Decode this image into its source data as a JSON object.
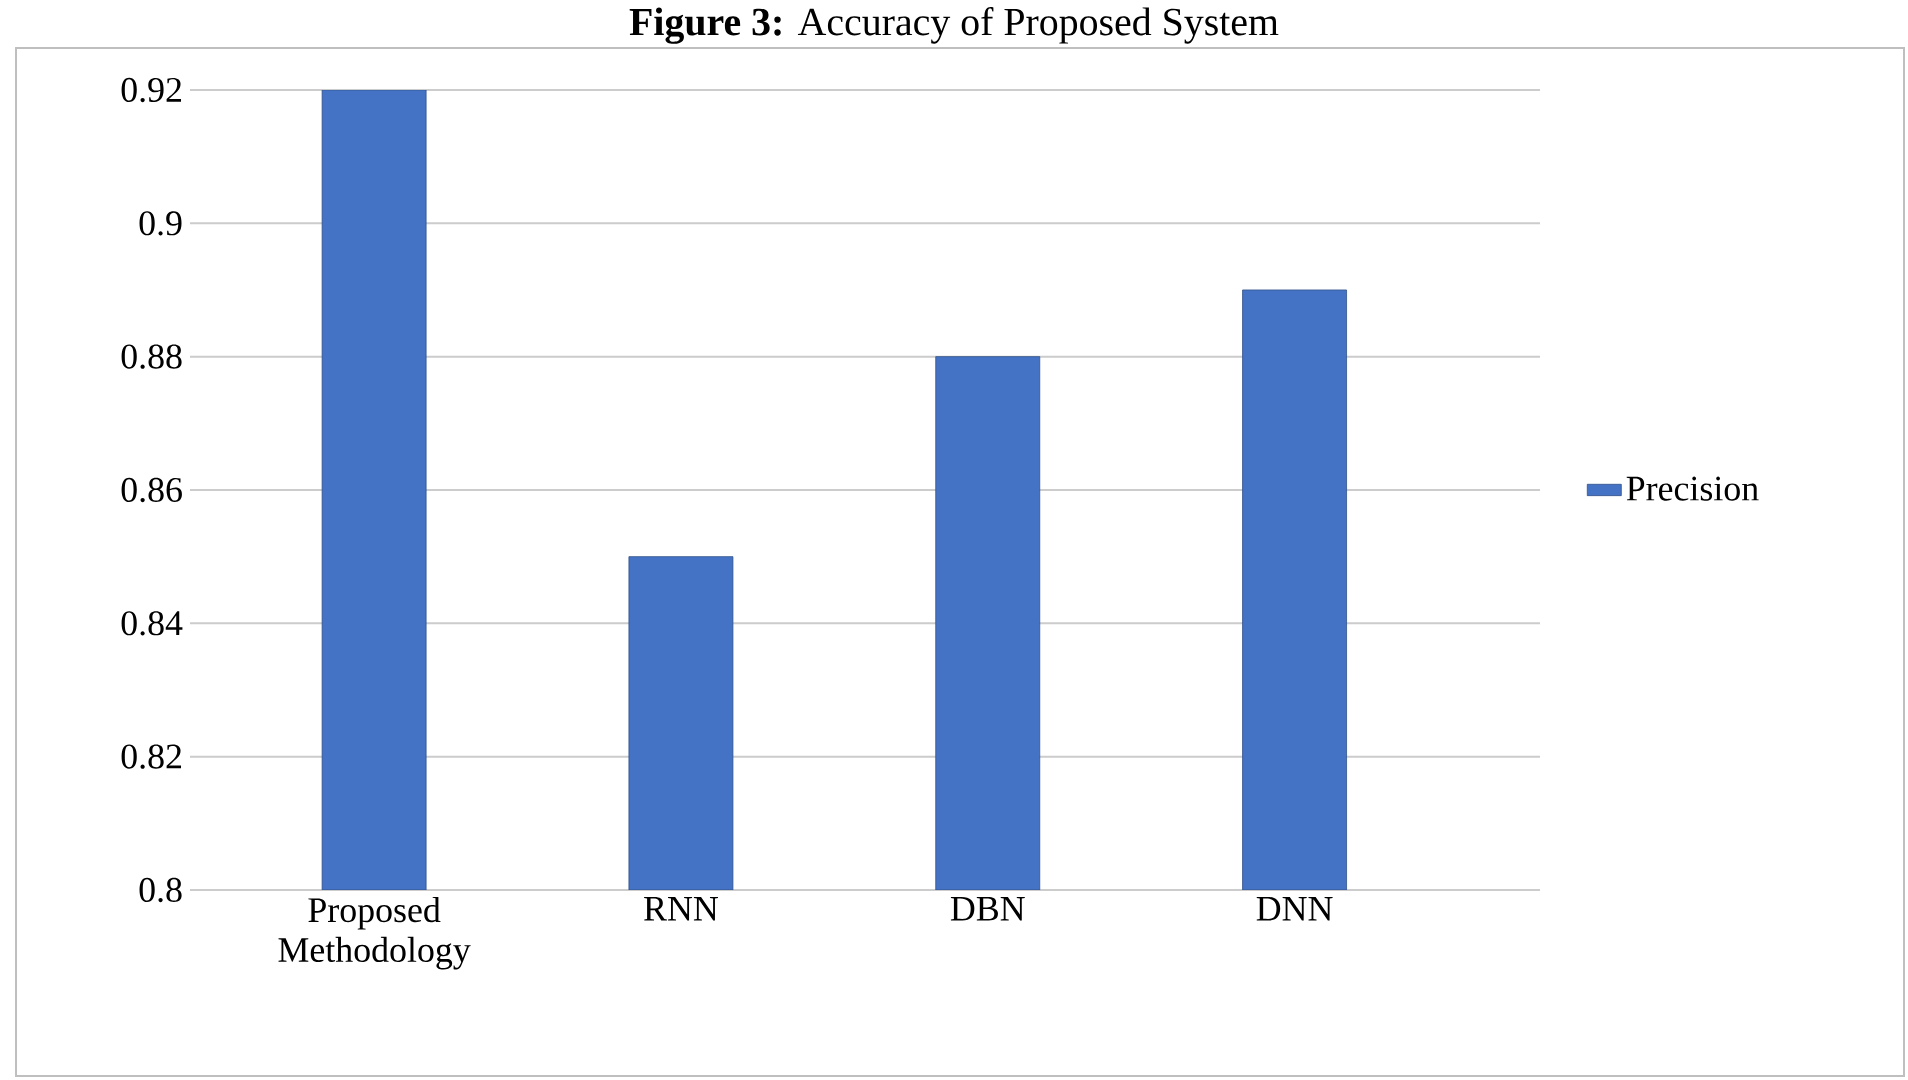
{
  "chart_data": {
    "type": "bar",
    "title": "**Figure 3:** Accuracy of Proposed System",
    "categories": [
      "Proposed Methodology",
      "RNN",
      "DBN",
      "DNN"
    ],
    "series": [
      {
        "name": "Precision",
        "color": "#4472c4",
        "values": [
          0.92,
          0.85,
          0.88,
          0.89
        ]
      }
    ],
    "ylim": [
      0.8,
      0.92
    ],
    "yticks": [
      0.8,
      0.82,
      0.84,
      0.86,
      0.88,
      0.9,
      0.92
    ],
    "grid": "y",
    "legend": "right"
  }
}
